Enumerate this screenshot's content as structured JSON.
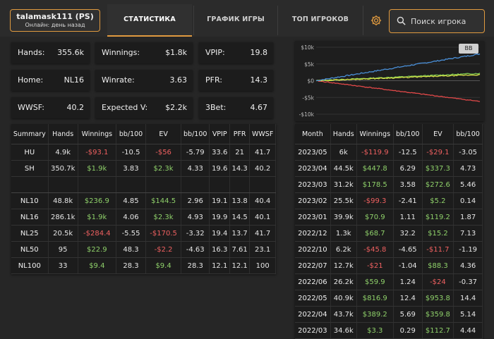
{
  "player": {
    "name": "talamask111 (PS)",
    "status": "Онлайн: день назад"
  },
  "tabs": [
    {
      "label": "СТАТИСТИКА"
    },
    {
      "label": "ГРАФИК ИГРЫ"
    },
    {
      "label": "ТОП ИГРОКОВ"
    }
  ],
  "search": {
    "placeholder": "Поиск игрока"
  },
  "stats": [
    {
      "label": "Hands:",
      "value": "355.6k"
    },
    {
      "label": "Winnings:",
      "value": "$1.8k"
    },
    {
      "label": "VPIP:",
      "value": "19.8"
    },
    {
      "label": "Home:",
      "value": "NL16"
    },
    {
      "label": "Winrate:",
      "value": "3.63"
    },
    {
      "label": "PFR:",
      "value": "14.3"
    },
    {
      "label": "WWSF:",
      "value": "40.2"
    },
    {
      "label": "Expected V:",
      "value": "$2.2k"
    },
    {
      "label": "3Bet:",
      "value": "4.67"
    }
  ],
  "chart_badge": "BB",
  "chart_data": {
    "type": "line",
    "yticks": [
      "$10k",
      "$5k",
      "$0",
      "-$5k",
      "-$10k"
    ],
    "ylim": [
      -10000,
      10000
    ],
    "series_colors": [
      "#4a90d9",
      "#7ec850",
      "#d8e048",
      "#e04848"
    ]
  },
  "summary": {
    "headers": [
      "Summary",
      "Hands",
      "Winnings",
      "bb/100",
      "EV",
      "bb/100",
      "VPIP",
      "PFR",
      "WWSF"
    ],
    "group1": [
      [
        "HU",
        "4.9k",
        "-$93.1",
        "-10.5",
        "-$56",
        "-5.79",
        "33.6",
        "21",
        "41.7"
      ],
      [
        "SH",
        "350.7k",
        "$1.9k",
        "3.83",
        "$2.3k",
        "4.33",
        "19.6",
        "14.3",
        "40.2"
      ]
    ],
    "group2": [
      [
        "NL10",
        "48.8k",
        "$236.9",
        "4.85",
        "$144.5",
        "2.96",
        "19.1",
        "13.8",
        "40.4"
      ],
      [
        "NL16",
        "286.1k",
        "$1.9k",
        "4.06",
        "$2.3k",
        "4.93",
        "19.9",
        "14.5",
        "40.1"
      ],
      [
        "NL25",
        "20.5k",
        "-$284.4",
        "-5.55",
        "-$170.5",
        "-3.32",
        "19.4",
        "13.7",
        "41.7"
      ],
      [
        "NL50",
        "95",
        "$22.9",
        "48.3",
        "-$2.2",
        "-4.63",
        "16.3",
        "7.61",
        "23.1"
      ],
      [
        "NL100",
        "33",
        "$9.4",
        "28.3",
        "$9.4",
        "28.3",
        "12.1",
        "12.1",
        "100"
      ]
    ]
  },
  "monthly": {
    "headers": [
      "Month",
      "Hands",
      "Winnings",
      "bb/100",
      "EV",
      "bb/100"
    ],
    "rows": [
      [
        "2023/05",
        "6k",
        "-$119.9",
        "-12.5",
        "-$29.1",
        "-3.05"
      ],
      [
        "2023/04",
        "44.5k",
        "$447.8",
        "6.29",
        "$337.3",
        "4.73"
      ],
      [
        "2023/03",
        "31.2k",
        "$178.5",
        "3.58",
        "$272.6",
        "5.46"
      ],
      [
        "2023/02",
        "25.5k",
        "-$99.3",
        "-2.41",
        "$5.2",
        "0.14"
      ],
      [
        "2023/01",
        "39.9k",
        "$70.9",
        "1.11",
        "$119.2",
        "1.87"
      ],
      [
        "2022/12",
        "1.3k",
        "$68.7",
        "32.2",
        "$15.2",
        "7.13"
      ],
      [
        "2022/10",
        "6.2k",
        "-$45.8",
        "-4.65",
        "-$11.7",
        "-1.19"
      ],
      [
        "2022/07",
        "12.7k",
        "-$21",
        "-1.04",
        "$88.3",
        "4.36"
      ],
      [
        "2022/06",
        "26.2k",
        "$59.9",
        "1.24",
        "-$24",
        "-0.37"
      ],
      [
        "2022/05",
        "40.9k",
        "$816.9",
        "12.4",
        "$953.8",
        "14.4"
      ],
      [
        "2022/04",
        "43.7k",
        "$389.2",
        "5.69",
        "$359.8",
        "5.14"
      ],
      [
        "2022/03",
        "34.6k",
        "$3.3",
        "0.29",
        "$112.7",
        "4.44"
      ]
    ]
  }
}
